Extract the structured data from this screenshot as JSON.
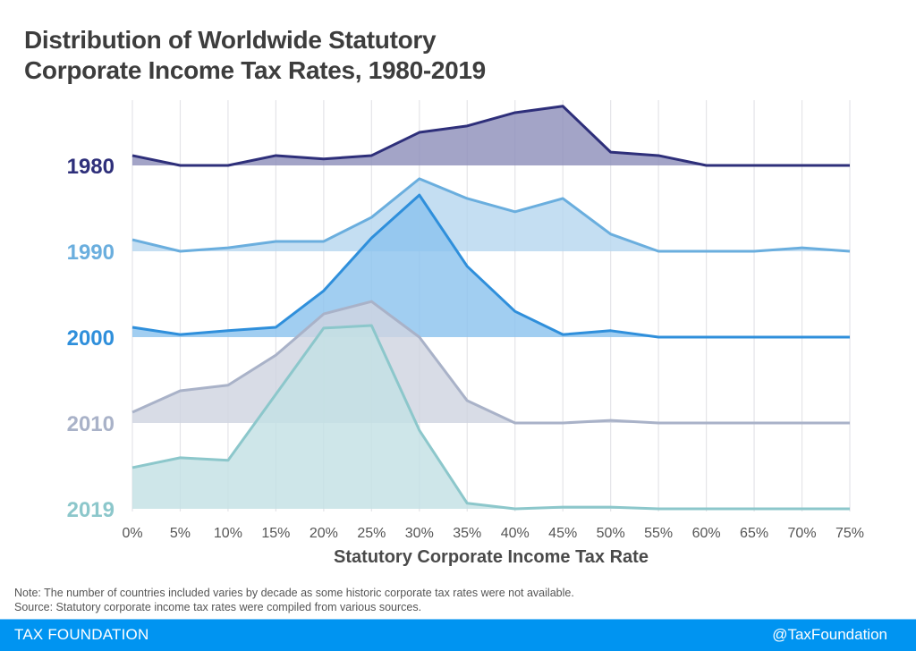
{
  "title_lines": [
    "Distribution of Worldwide Statutory",
    "Corporate Income Tax Rates, 1980-2019"
  ],
  "footer": {
    "brand": "TAX FOUNDATION",
    "handle": "@TaxFoundation",
    "color": "#0094f1"
  },
  "notes": [
    "Note: The number of countries included varies by decade as some historic corporate tax rates were not available.",
    "Source: Statutory corporate income tax rates were compiled from various sources."
  ],
  "chart_data": {
    "type": "area",
    "subtype": "ridgeline",
    "title": "Distribution of Worldwide Statutory Corporate Income Tax Rates, 1980-2019",
    "xlabel": "Statutory Corporate Income Tax Rate",
    "ylabel": "",
    "x": [
      0,
      5,
      10,
      15,
      20,
      25,
      30,
      35,
      40,
      45,
      50,
      55,
      60,
      65,
      70,
      75
    ],
    "x_tick_labels": [
      "0%",
      "5%",
      "10%",
      "15%",
      "20%",
      "25%",
      "30%",
      "35%",
      "40%",
      "45%",
      "50%",
      "55%",
      "60%",
      "65%",
      "70%",
      "75%"
    ],
    "xlim": [
      0,
      75
    ],
    "value_units": "relative density (approximate, unlabeled axis)",
    "grid": "vertical",
    "series": [
      {
        "name": "1980",
        "line_color": "#2e2f7a",
        "fill_color": "#8f90bb",
        "values": [
          2.3,
          0,
          0,
          2.3,
          1.5,
          2.3,
          7.7,
          9.2,
          12.3,
          13.8,
          3.1,
          2.3,
          0,
          0,
          0,
          0
        ]
      },
      {
        "name": "1990",
        "line_color": "#6aaede",
        "fill_color": "#b7d7ef",
        "values": [
          2.7,
          0,
          0.8,
          2.3,
          2.3,
          7.9,
          16.9,
          12.3,
          9.2,
          12.3,
          4.0,
          0,
          0,
          0,
          0.8,
          0
        ]
      },
      {
        "name": "2000",
        "line_color": "#2f8fdb",
        "fill_color": "#8cc3ee",
        "values": [
          2.3,
          0.6,
          1.5,
          2.3,
          10.8,
          23.1,
          33.1,
          16.5,
          6.0,
          0.6,
          1.5,
          0,
          0,
          0,
          0,
          0
        ]
      },
      {
        "name": "2010",
        "line_color": "#a9b2c8",
        "fill_color": "#cfd4e0",
        "values": [
          2.5,
          7.5,
          8.8,
          15.8,
          25.4,
          28.3,
          20.0,
          5.2,
          0,
          0,
          0.6,
          0,
          0,
          0,
          0,
          0
        ]
      },
      {
        "name": "2019",
        "line_color": "#8cc7cb",
        "fill_color": "#c3e1e4",
        "values": [
          9.6,
          11.9,
          11.3,
          26.7,
          42.1,
          42.7,
          18.3,
          1.3,
          0,
          0.4,
          0.4,
          0,
          0,
          0,
          0,
          0
        ]
      }
    ]
  }
}
